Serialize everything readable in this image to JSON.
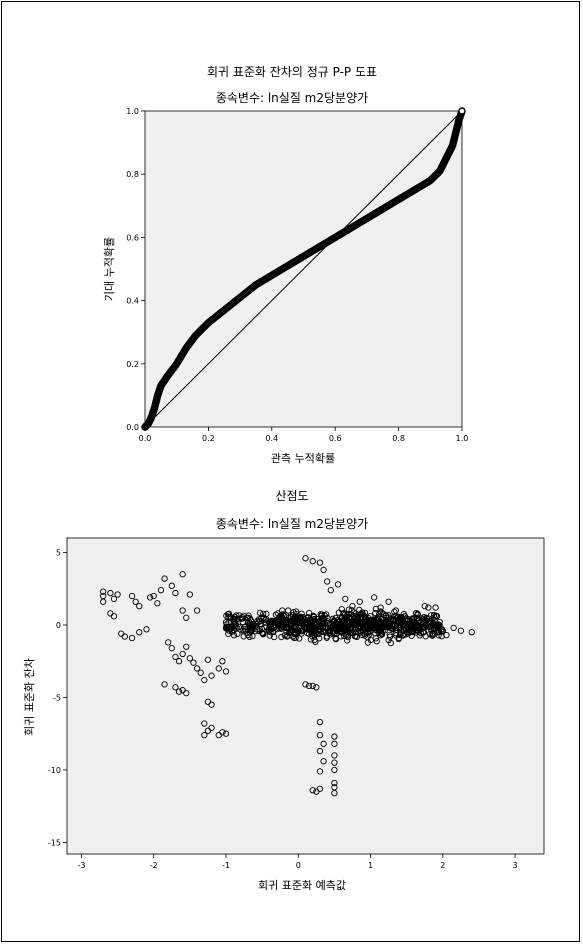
{
  "chart_data": [
    {
      "type": "line",
      "title": "회귀 표준화 잔차의 정규 P-P 도표",
      "subtitle": "종속변수: ln실질 m2당분양가",
      "xlabel": "관측 누적확률",
      "ylabel": "기대 누적확률",
      "xlim": [
        0.0,
        1.0
      ],
      "ylim": [
        0.0,
        1.0
      ],
      "xticks": [
        "0.0",
        "0.2",
        "0.4",
        "0.6",
        "0.8",
        "1.0"
      ],
      "yticks": [
        "0.0",
        "0.2",
        "0.4",
        "0.6",
        "0.8",
        "1.0"
      ],
      "grid": false,
      "background": "#f0f0f0",
      "series": [
        {
          "kind": "reference-line",
          "x": [
            0.0,
            1.0
          ],
          "y": [
            0.0,
            1.0
          ]
        },
        {
          "kind": "pp-points",
          "x": [
            0.0,
            0.01,
            0.02,
            0.03,
            0.04,
            0.05,
            0.07,
            0.1,
            0.13,
            0.16,
            0.2,
            0.25,
            0.3,
            0.35,
            0.4,
            0.45,
            0.5,
            0.55,
            0.6,
            0.65,
            0.7,
            0.75,
            0.8,
            0.85,
            0.9,
            0.93,
            0.95,
            0.97,
            0.98,
            0.99,
            1.0
          ],
          "y": [
            0.0,
            0.01,
            0.03,
            0.06,
            0.1,
            0.13,
            0.16,
            0.2,
            0.25,
            0.29,
            0.33,
            0.37,
            0.41,
            0.45,
            0.48,
            0.51,
            0.54,
            0.57,
            0.6,
            0.63,
            0.66,
            0.69,
            0.72,
            0.75,
            0.78,
            0.81,
            0.85,
            0.89,
            0.93,
            0.97,
            1.0
          ]
        }
      ]
    },
    {
      "type": "scatter",
      "title": "산점도",
      "subtitle": "종속변수: ln실질 m2당분양가",
      "xlabel": "회귀 표준화 예측값",
      "ylabel": "회귀 표준화 잔차",
      "xlim": [
        -3.2,
        3.4
      ],
      "ylim": [
        -15.8,
        6.0
      ],
      "xticks": [
        "-3",
        "-2",
        "-1",
        "0",
        "1",
        "2",
        "3"
      ],
      "yticks": [
        "5",
        "0",
        "-5",
        "-10",
        "-15"
      ],
      "grid": false,
      "background": "#f0f0f0",
      "clusters": [
        {
          "x": [
            -1.0,
            2.0
          ],
          "y": [
            -0.9,
            0.9
          ],
          "n": 620
        },
        {
          "x": [
            -0.3,
            1.4
          ],
          "y": [
            -1.3,
            1.3
          ],
          "n": 240
        }
      ],
      "points": [
        [
          -2.7,
          2.3
        ],
        [
          -2.7,
          2.0
        ],
        [
          -2.6,
          2.2
        ],
        [
          -2.55,
          1.8
        ],
        [
          -2.5,
          2.1
        ],
        [
          -2.7,
          1.6
        ],
        [
          -2.6,
          0.8
        ],
        [
          -2.55,
          0.6
        ],
        [
          -2.3,
          2.0
        ],
        [
          -2.25,
          1.6
        ],
        [
          -2.2,
          1.3
        ],
        [
          -2.45,
          -0.6
        ],
        [
          -2.4,
          -0.8
        ],
        [
          -2.3,
          -0.9
        ],
        [
          -2.2,
          -0.5
        ],
        [
          -2.1,
          -0.3
        ],
        [
          -2.05,
          1.9
        ],
        [
          -2.0,
          2.0
        ],
        [
          -1.95,
          1.5
        ],
        [
          -1.9,
          2.4
        ],
        [
          -1.85,
          3.2
        ],
        [
          -1.75,
          2.7
        ],
        [
          -1.7,
          2.2
        ],
        [
          -1.6,
          3.5
        ],
        [
          -1.6,
          1.0
        ],
        [
          -1.5,
          2.1
        ],
        [
          -1.55,
          0.5
        ],
        [
          -1.4,
          1.0
        ],
        [
          -1.8,
          -1.2
        ],
        [
          -1.75,
          -1.6
        ],
        [
          -1.7,
          -2.2
        ],
        [
          -1.65,
          -2.5
        ],
        [
          -1.6,
          -2.0
        ],
        [
          -1.55,
          -1.5
        ],
        [
          -1.5,
          -2.3
        ],
        [
          -1.45,
          -2.6
        ],
        [
          -1.4,
          -3.0
        ],
        [
          -1.35,
          -3.3
        ],
        [
          -1.3,
          -3.8
        ],
        [
          -1.25,
          -2.4
        ],
        [
          -1.2,
          -3.5
        ],
        [
          -1.1,
          -3.0
        ],
        [
          -1.05,
          -2.5
        ],
        [
          -1.0,
          -3.2
        ],
        [
          -1.85,
          -4.1
        ],
        [
          -1.7,
          -4.3
        ],
        [
          -1.65,
          -4.6
        ],
        [
          -1.6,
          -4.5
        ],
        [
          -1.55,
          -4.7
        ],
        [
          -1.25,
          -5.3
        ],
        [
          -1.2,
          -5.5
        ],
        [
          -1.3,
          -6.8
        ],
        [
          -1.25,
          -7.3
        ],
        [
          -1.2,
          -7.1
        ],
        [
          -1.1,
          -7.6
        ],
        [
          -1.05,
          -7.4
        ],
        [
          -1.0,
          -7.5
        ],
        [
          -1.3,
          -7.6
        ],
        [
          0.1,
          4.6
        ],
        [
          0.2,
          4.4
        ],
        [
          0.3,
          4.3
        ],
        [
          0.35,
          3.8
        ],
        [
          0.4,
          3.0
        ],
        [
          0.45,
          2.4
        ],
        [
          0.55,
          2.8
        ],
        [
          0.65,
          1.8
        ],
        [
          0.75,
          1.3
        ],
        [
          0.85,
          1.6
        ],
        [
          1.05,
          1.9
        ],
        [
          1.25,
          1.6
        ],
        [
          1.35,
          1.0
        ],
        [
          1.75,
          1.3
        ],
        [
          1.8,
          1.2
        ],
        [
          1.9,
          1.2
        ],
        [
          2.0,
          -0.4
        ],
        [
          2.05,
          -0.7
        ],
        [
          2.15,
          -0.2
        ],
        [
          2.25,
          -0.4
        ],
        [
          2.4,
          -0.5
        ],
        [
          0.1,
          -4.1
        ],
        [
          0.15,
          -4.2
        ],
        [
          0.2,
          -4.2
        ],
        [
          0.25,
          -4.3
        ],
        [
          0.3,
          -6.7
        ],
        [
          0.3,
          -7.6
        ],
        [
          0.35,
          -8.2
        ],
        [
          0.3,
          -8.7
        ],
        [
          0.35,
          -9.4
        ],
        [
          0.3,
          -10.1
        ],
        [
          0.5,
          -7.7
        ],
        [
          0.5,
          -8.2
        ],
        [
          0.5,
          -9.0
        ],
        [
          0.5,
          -9.5
        ],
        [
          0.5,
          -10.0
        ],
        [
          0.5,
          -10.9
        ],
        [
          0.5,
          -11.2
        ],
        [
          0.5,
          -11.6
        ],
        [
          0.2,
          -11.4
        ],
        [
          0.25,
          -11.5
        ],
        [
          0.3,
          -11.3
        ]
      ]
    }
  ]
}
